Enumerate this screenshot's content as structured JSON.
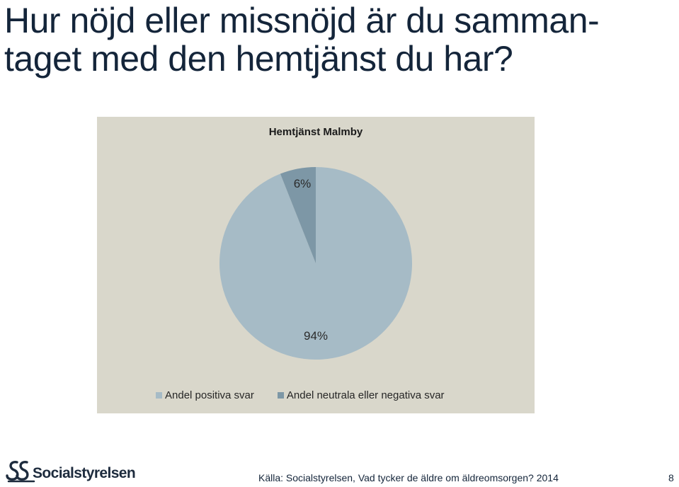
{
  "slide": {
    "title_lines": [
      "Hur nöjd eller missnöjd är du samman-",
      "taget med den hemtjänst du har?"
    ],
    "footer": {
      "logo_text": "Socialstyrelsen",
      "logo_icon": "socialstyrelsen-logo-icon",
      "source": "Källa: Socialstyrelsen, Vad tycker de äldre om äldreomsorgen? 2014",
      "page_number": "8"
    }
  },
  "colors": {
    "panel_background": "#d9d7cb",
    "title_text": "#14253a",
    "series_positive": "#a6bbc6",
    "series_negative": "#7d97a6"
  },
  "chart_data": {
    "type": "pie",
    "title": "Hemtjänst Malmby",
    "categories": [
      "Andel positiva svar",
      "Andel neutrala eller negativa svar"
    ],
    "values": [
      94,
      6
    ],
    "data_labels": [
      "94%",
      "6%"
    ],
    "colors": [
      "#a6bbc6",
      "#7d97a6"
    ],
    "legend_position": "bottom",
    "start_angle_deg": 0,
    "direction": "clockwise"
  }
}
